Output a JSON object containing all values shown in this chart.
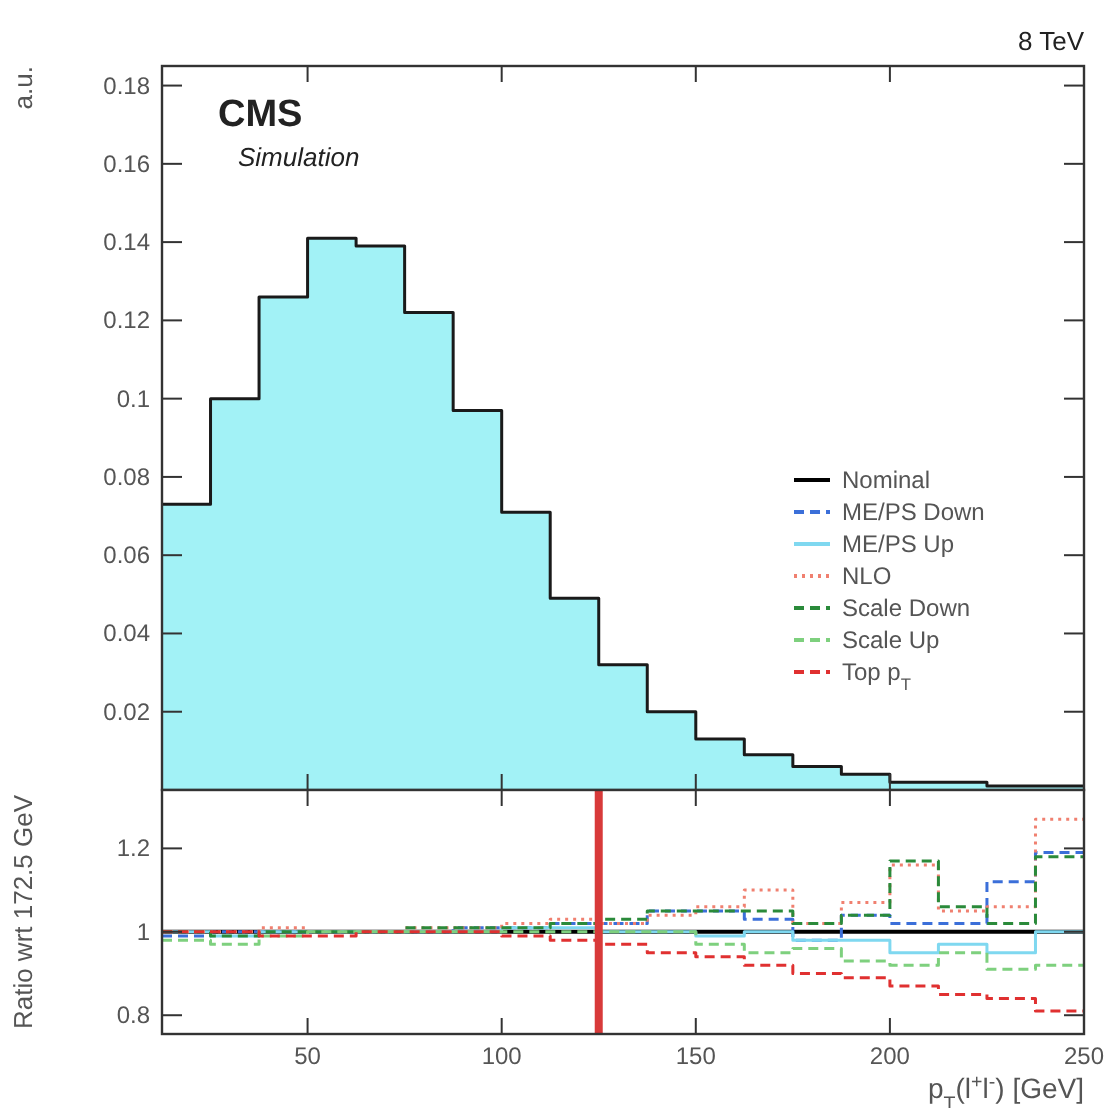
{
  "chart_data": [
    {
      "type": "histogram",
      "ylabel": "a.u.",
      "annotations": [
        "8 TeV",
        "CMS",
        "Simulation"
      ],
      "bins": [
        12.5,
        25,
        37.5,
        50,
        62.5,
        75,
        87.5,
        100,
        112.5,
        125,
        137.5,
        150,
        162.5,
        175,
        187.5,
        200,
        212.5,
        225,
        237.5,
        250
      ],
      "xlim": [
        12.5,
        250
      ],
      "xticks": [
        50,
        100,
        150,
        200,
        250
      ],
      "ylim": [
        0,
        0.185
      ],
      "yticks": [
        0.02,
        0.04,
        0.06,
        0.08,
        0.1,
        0.12,
        0.14,
        0.16,
        0.18
      ],
      "tick_labels": "y",
      "grid": false,
      "series": [
        {
          "color": "#a2f2f6",
          "values": [
            0.073,
            0.1,
            0.126,
            0.141,
            0.139,
            0.122,
            0.097,
            0.071,
            0.049,
            0.032,
            0.02,
            0.013,
            0.009,
            0.006,
            0.004,
            0.002,
            0.002,
            0.001,
            0.001
          ]
        },
        {
          "color": "#1a1a1a",
          "line_style": "solid",
          "values": [
            0.073,
            0.1,
            0.126,
            0.141,
            0.139,
            0.122,
            0.097,
            0.071,
            0.049,
            0.032,
            0.02,
            0.013,
            0.009,
            0.006,
            0.004,
            0.002,
            0.002,
            0.001,
            0.001
          ]
        }
      ]
    },
    {
      "type": "histogram",
      "xlabel": "p$_{T}$(l$^{+}$l$^{-}$) [GeV]",
      "ylabel": "Ratio wrt 172.5 GeV",
      "bins": [
        12.5,
        25,
        37.5,
        50,
        62.5,
        75,
        87.5,
        100,
        112.5,
        125,
        137.5,
        150,
        162.5,
        175,
        187.5,
        200,
        212.5,
        225,
        237.5,
        250
      ],
      "xlim": [
        12.5,
        250
      ],
      "xticks": [
        50,
        100,
        150,
        200,
        250
      ],
      "ylim": [
        0.755,
        1.34
      ],
      "yticks": [
        0.8,
        1,
        1.2
      ],
      "grid": false,
      "legend": "top right",
      "ref_lines": [
        {
          "axis": "x",
          "value": 125,
          "color": "#d83a3a"
        }
      ],
      "series": [
        {
          "name": "Nominal",
          "color": "#000000",
          "line_style": "solid",
          "values": [
            1,
            1,
            1,
            1,
            1,
            1,
            1,
            1,
            1,
            1,
            1,
            1,
            1,
            1,
            1,
            1,
            1,
            1,
            1
          ]
        },
        {
          "name": "ME/PS Down",
          "color": "#3b6fd9",
          "line_style": "dashed",
          "values": [
            0.99,
            1.0,
            1.0,
            1.0,
            1.0,
            1.0,
            1.01,
            1.01,
            1.02,
            1.02,
            1.05,
            1.05,
            1.03,
            0.98,
            1.04,
            1.02,
            1.02,
            1.12,
            1.19
          ]
        },
        {
          "name": "ME/PS Up",
          "color": "#7fd8f0",
          "line_style": "solid",
          "values": [
            1.0,
            0.99,
            1.0,
            1.0,
            1.0,
            1.0,
            1.0,
            1.01,
            1.01,
            1.0,
            1.0,
            0.99,
            1.0,
            0.98,
            0.98,
            0.95,
            0.97,
            0.95,
            1.0
          ]
        },
        {
          "name": "NLO",
          "color": "#f08070",
          "line_style": "dotted",
          "values": [
            1.0,
            1.0,
            1.01,
            1.0,
            1.0,
            1.01,
            1.01,
            1.02,
            1.03,
            1.02,
            1.04,
            1.06,
            1.1,
            1.02,
            1.07,
            1.16,
            1.05,
            1.06,
            1.27
          ]
        },
        {
          "name": "Scale Down",
          "color": "#2a8a3a",
          "line_style": "dashed",
          "values": [
            1.0,
            0.99,
            1.0,
            1.0,
            1.0,
            1.01,
            1.01,
            1.01,
            1.02,
            1.03,
            1.05,
            1.05,
            1.05,
            1.02,
            1.04,
            1.17,
            1.06,
            1.02,
            1.18
          ]
        },
        {
          "name": "Scale Up",
          "color": "#7ed07e",
          "line_style": "dashed",
          "values": [
            0.98,
            0.97,
            0.99,
            1.0,
            1.0,
            1.0,
            1.0,
            1.0,
            1.0,
            1.0,
            1.0,
            0.97,
            0.95,
            0.96,
            0.93,
            0.92,
            0.95,
            0.91,
            0.92
          ]
        },
        {
          "name": "Top p$_{T}$",
          "color": "#e03030",
          "line_style": "dashed",
          "values": [
            1.0,
            1.0,
            0.99,
            0.99,
            1.0,
            1.0,
            1.0,
            0.99,
            0.98,
            0.97,
            0.95,
            0.94,
            0.92,
            0.9,
            0.89,
            0.87,
            0.85,
            0.84,
            0.81
          ]
        }
      ]
    }
  ]
}
